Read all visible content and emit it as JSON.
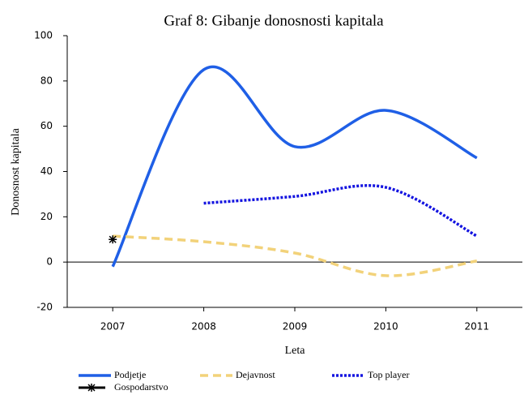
{
  "chart_data": {
    "type": "line",
    "title": "Graf 8: Gibanje donosnosti kapitala",
    "x_label": "Leta",
    "y_label": "Donosnost kapitala",
    "x": [
      2007,
      2008,
      2009,
      2010,
      2011
    ],
    "xlim": [
      2006.5,
      2011.5
    ],
    "xticks": [
      2007,
      2008,
      2009,
      2010,
      2011
    ],
    "ylim": [
      -20,
      100
    ],
    "yticks": [
      -20,
      0,
      20,
      40,
      60,
      80,
      100
    ],
    "series": [
      {
        "name": "Podjetje",
        "color": "#1f5fe6",
        "style": "solid",
        "values": [
          -2,
          85,
          51,
          67,
          46
        ]
      },
      {
        "name": "Dejavnost",
        "color": "#f2d27a",
        "style": "dashed",
        "values": [
          11.5,
          9,
          4,
          -6,
          0.5
        ]
      },
      {
        "name": "Top player",
        "color": "#1414e0",
        "style": "dotted",
        "values": [
          null,
          26,
          29,
          33,
          11.5
        ]
      },
      {
        "name": "Gospodarstvo",
        "color": "#000000",
        "style": "marker",
        "values": [
          10,
          null,
          null,
          null,
          null
        ]
      }
    ]
  }
}
